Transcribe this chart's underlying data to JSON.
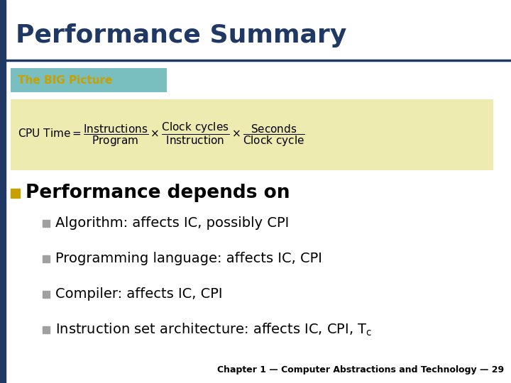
{
  "title": "Performance Summary",
  "title_color": "#1F3864",
  "title_fontsize": 26,
  "bg_color": "#FFFFFF",
  "left_bar_color": "#1F3864",
  "underline_color": "#1F3864",
  "big_picture_label": "The BIG Picture",
  "big_picture_bg": "#7ABFBF",
  "big_picture_text_color": "#C8A000",
  "big_picture_fontsize": 11,
  "formula_box_color": "#EEEBB0",
  "formula_fontsize": 11,
  "main_bullet_text": "Performance depends on",
  "main_bullet_fontsize": 19,
  "main_bullet_square_color": "#C8A000",
  "sub_bullet_fontsize": 14,
  "sub_bullet_square_color": "#A0A0A0",
  "footer_text": "Chapter 1 — Computer Abstractions and Technology — 29",
  "footer_fontsize": 9
}
